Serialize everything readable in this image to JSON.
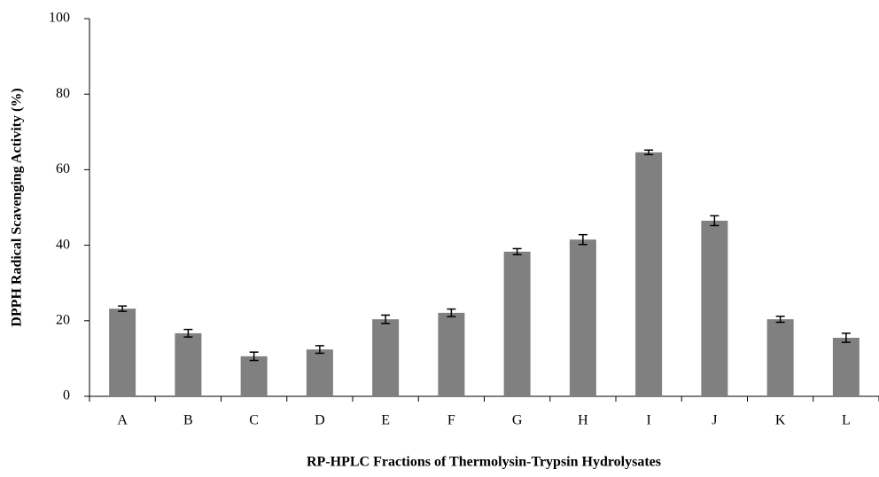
{
  "chart_data": {
    "type": "bar",
    "xlabel": "RP-HPLC Fractions of Thermolysin-Trypsin Hydrolysates",
    "ylabel": "DPPH Radical Scavenging Activity (%)",
    "categories": [
      "A",
      "B",
      "C",
      "D",
      "E",
      "F",
      "G",
      "H",
      "I",
      "J",
      "K",
      "L"
    ],
    "values": [
      23.2,
      16.7,
      10.6,
      12.4,
      20.4,
      22.1,
      38.3,
      41.5,
      64.6,
      46.5,
      20.4,
      15.5
    ],
    "errors": [
      0.7,
      1.0,
      1.1,
      1.0,
      1.1,
      1.0,
      0.8,
      1.3,
      0.6,
      1.3,
      0.8,
      1.2
    ],
    "color": "#808080",
    "ylim": [
      0,
      100
    ],
    "yticks": [
      0,
      20,
      40,
      60,
      80,
      100
    ],
    "grid": false
  }
}
